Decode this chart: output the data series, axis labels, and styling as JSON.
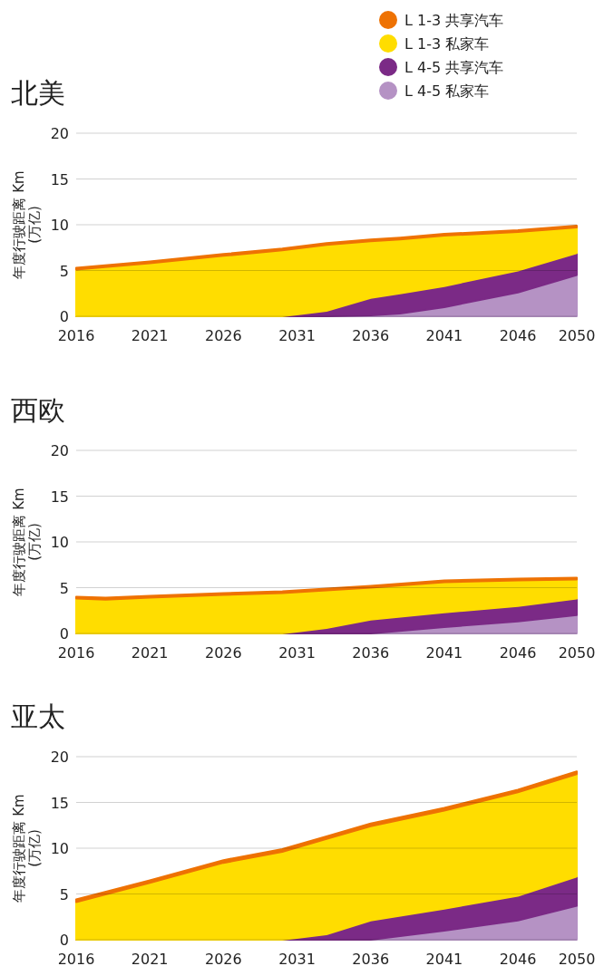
{
  "chart_data": [
    {
      "type": "area",
      "title": "北美",
      "ylabel": "年度行驶距离 Km (万亿)",
      "stacked": true,
      "grid": "y",
      "legend": "top right",
      "x": [
        2016,
        2021,
        2026,
        2030,
        2033,
        2036,
        2038,
        2041,
        2046,
        2050
      ],
      "xlim": [
        2016,
        2050
      ],
      "xticks": [
        2016,
        2021,
        2026,
        2031,
        2036,
        2041,
        2046,
        2050
      ],
      "ylim": [
        0,
        20
      ],
      "yticks": [
        0,
        5,
        10,
        15,
        20
      ],
      "series": [
        {
          "name": "L 4-5 私家车",
          "color": "#b592c4",
          "values": [
            0,
            0,
            0,
            0,
            0,
            0.1,
            0.3,
            1.0,
            2.6,
            4.5
          ]
        },
        {
          "name": "L 4-5 共享汽车",
          "color": "#7b2a86",
          "values": [
            0,
            0,
            0,
            0,
            0.6,
            1.9,
            2.2,
            2.3,
            2.4,
            2.4
          ]
        },
        {
          "name": "L 1-3 私家车",
          "color": "#ffdd00",
          "values": [
            5.1,
            5.8,
            6.6,
            7.2,
            7.2,
            6.2,
            5.9,
            5.5,
            4.2,
            2.8
          ]
        },
        {
          "name": "L 1-3 共享汽车",
          "color": "#ee7203",
          "values": [
            0.2,
            0.2,
            0.2,
            0.2,
            0.2,
            0.2,
            0.2,
            0.2,
            0.2,
            0.2
          ]
        }
      ]
    },
    {
      "type": "area",
      "title": "西欧",
      "ylabel": "年度行驶距离 Km (万亿)",
      "stacked": true,
      "grid": "y",
      "x": [
        2016,
        2018,
        2021,
        2026,
        2030,
        2033,
        2036,
        2041,
        2046,
        2050
      ],
      "xlim": [
        2016,
        2050
      ],
      "xticks": [
        2016,
        2021,
        2026,
        2031,
        2036,
        2041,
        2046,
        2050
      ],
      "ylim": [
        0,
        20
      ],
      "yticks": [
        0,
        5,
        10,
        15,
        20
      ],
      "series": [
        {
          "color": "#b592c4",
          "values": [
            0,
            0,
            0,
            0,
            0,
            0,
            0,
            0.7,
            1.3,
            2.0
          ]
        },
        {
          "color": "#7b2a86",
          "values": [
            0,
            0,
            0,
            0,
            0,
            0.6,
            1.5,
            1.6,
            1.7,
            1.8
          ]
        },
        {
          "color": "#ffdd00",
          "values": [
            3.8,
            3.7,
            3.9,
            4.2,
            4.4,
            4.1,
            3.5,
            3.3,
            2.8,
            2.1
          ]
        },
        {
          "color": "#ee7203",
          "values": [
            0.2,
            0.2,
            0.2,
            0.2,
            0.2,
            0.2,
            0.2,
            0.2,
            0.2,
            0.2
          ]
        }
      ]
    },
    {
      "type": "area",
      "title": "亚太",
      "ylabel": "年度行驶距离 Km (万亿)",
      "stacked": true,
      "grid": "y",
      "x": [
        2016,
        2021,
        2026,
        2030,
        2033,
        2036,
        2041,
        2046,
        2050
      ],
      "xlim": [
        2016,
        2050
      ],
      "xticks": [
        2016,
        2021,
        2026,
        2031,
        2036,
        2041,
        2046,
        2050
      ],
      "ylim": [
        0,
        20
      ],
      "yticks": [
        0,
        5,
        10,
        15,
        20
      ],
      "series": [
        {
          "color": "#b592c4",
          "values": [
            0,
            0,
            0,
            0,
            0,
            0,
            1.0,
            2.1,
            3.7
          ]
        },
        {
          "color": "#7b2a86",
          "values": [
            0,
            0,
            0,
            0,
            0.6,
            2.1,
            2.4,
            2.7,
            3.2
          ]
        },
        {
          "color": "#ffdd00",
          "values": [
            4.1,
            6.2,
            8.4,
            9.6,
            10.4,
            10.3,
            10.7,
            11.3,
            11.2
          ]
        },
        {
          "color": "#ee7203",
          "values": [
            0.3,
            0.3,
            0.3,
            0.3,
            0.3,
            0.3,
            0.3,
            0.3,
            0.3
          ]
        }
      ]
    }
  ]
}
